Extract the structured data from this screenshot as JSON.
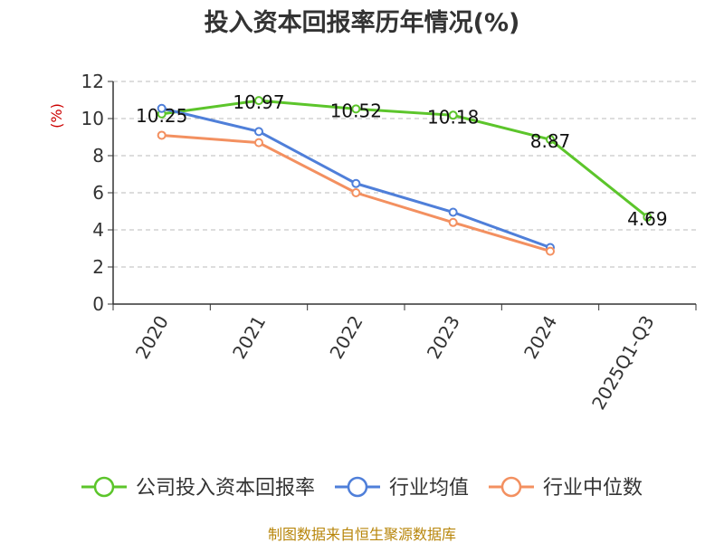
{
  "chart_data": {
    "type": "line",
    "title": "投入资本回报率历年情况(%)",
    "ylabel": "(%)",
    "xlabel": "",
    "categories": [
      "2020",
      "2021",
      "2022",
      "2023",
      "2024",
      "2025Q1-Q3"
    ],
    "ylim": [
      0,
      12
    ],
    "yticks": [
      0,
      2,
      4,
      6,
      8,
      10,
      12
    ],
    "grid": true,
    "legend_position": "bottom",
    "series": [
      {
        "name": "公司投入资本回报率",
        "color": "#5cc52b",
        "values": [
          10.25,
          10.97,
          10.52,
          10.18,
          8.87,
          4.69
        ],
        "labels": [
          "10.25",
          "10.97",
          "10.52",
          "10.18",
          "8.87",
          "4.69"
        ]
      },
      {
        "name": "行业均值",
        "color": "#4f7fd9",
        "values": [
          10.55,
          9.3,
          6.5,
          4.95,
          3.05,
          null
        ]
      },
      {
        "name": "行业中位数",
        "color": "#f39060",
        "values": [
          9.1,
          8.7,
          6.0,
          4.4,
          2.85,
          null
        ]
      }
    ]
  },
  "source": "制图数据来自恒生聚源数据库"
}
